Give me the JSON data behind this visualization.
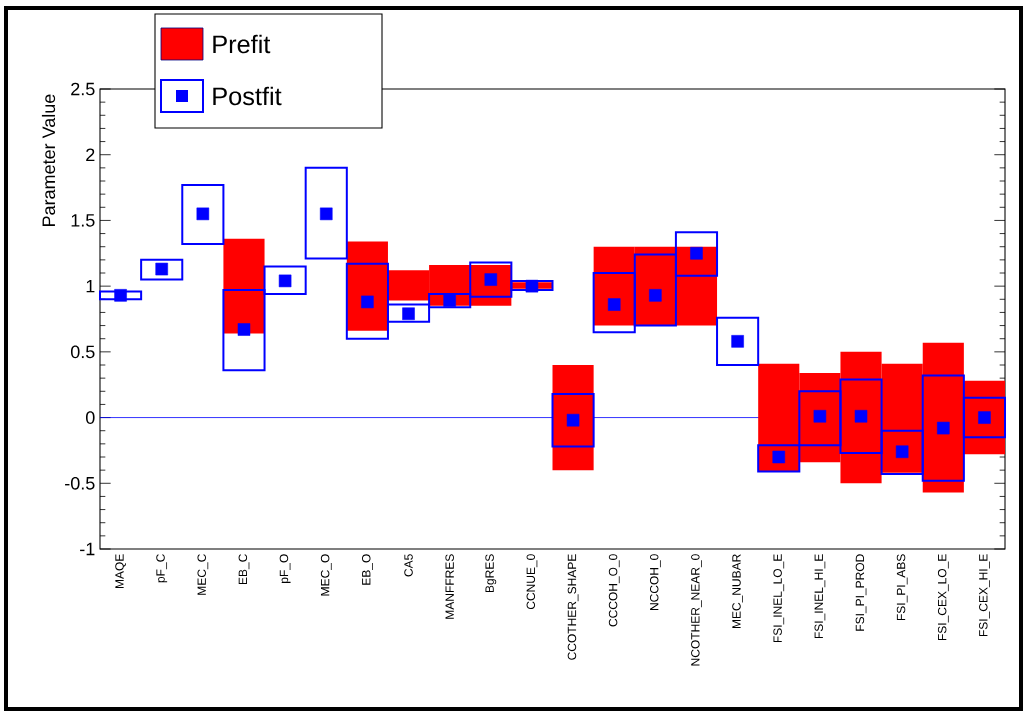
{
  "chart_data": {
    "type": "bar",
    "ylabel": "Parameter Value",
    "categories": [
      "MAQE",
      "pF_C",
      "MEC_C",
      "EB_C",
      "pF_O",
      "MEC_O",
      "EB_O",
      "CA5",
      "MANFFRES",
      "BgRES",
      "CCNUE_0",
      "CCOTHER_SHAPE",
      "CCCOH_O_0",
      "NCCOH_0",
      "NCOTHER_NEAR_0",
      "MEC_NUBAR",
      "FSI_INEL_LO_E",
      "FSI_INEL_HI_E",
      "FSI_PI_PROD",
      "FSI_PI_ABS",
      "FSI_CEX_LO_E",
      "FSI_CEX_HI_E"
    ],
    "series": [
      {
        "name": "Prefit",
        "color": "#ff0000",
        "base": [
          null,
          null,
          null,
          0.64,
          null,
          null,
          0.66,
          0.89,
          0.85,
          0.85,
          0.98,
          -0.4,
          0.7,
          0.7,
          0.7,
          null,
          -0.41,
          -0.34,
          -0.5,
          -0.42,
          -0.57,
          -0.28
        ],
        "values": [
          null,
          null,
          null,
          0.72,
          null,
          null,
          0.68,
          0.23,
          0.31,
          0.31,
          0.05,
          0.8,
          0.6,
          0.6,
          0.6,
          null,
          0.82,
          0.68,
          1.0,
          0.83,
          1.14,
          0.56
        ]
      },
      {
        "name": "Postfit",
        "color": "#0000ff",
        "base": [
          0.9,
          1.05,
          1.32,
          0.36,
          0.94,
          1.21,
          0.6,
          0.73,
          0.84,
          0.92,
          0.97,
          -0.22,
          0.65,
          0.7,
          1.08,
          0.4,
          -0.41,
          -0.21,
          -0.27,
          -0.43,
          -0.48,
          -0.15
        ],
        "values": [
          0.06,
          0.15,
          0.45,
          0.61,
          0.21,
          0.69,
          0.57,
          0.13,
          0.1,
          0.26,
          0.07,
          0.4,
          0.45,
          0.54,
          0.33,
          0.36,
          0.2,
          0.41,
          0.56,
          0.33,
          0.8,
          0.3
        ]
      },
      {
        "type": "scatter",
        "color": "#0000ff",
        "marker": "square",
        "values": [
          0.93,
          1.13,
          1.55,
          0.67,
          1.04,
          1.55,
          0.88,
          0.79,
          0.89,
          1.05,
          1.0,
          -0.02,
          0.86,
          0.93,
          1.25,
          0.58,
          -0.3,
          0.01,
          0.01,
          -0.26,
          -0.08,
          0.0
        ]
      }
    ],
    "ylim": [
      -1,
      2.5
    ],
    "yticks": [
      -1,
      -0.5,
      0,
      0.5,
      1,
      1.5,
      2,
      2.5
    ],
    "ref_lines": [
      {
        "axis": "y",
        "value": 0,
        "color": "#0000ff"
      }
    ],
    "legend": "top left"
  }
}
